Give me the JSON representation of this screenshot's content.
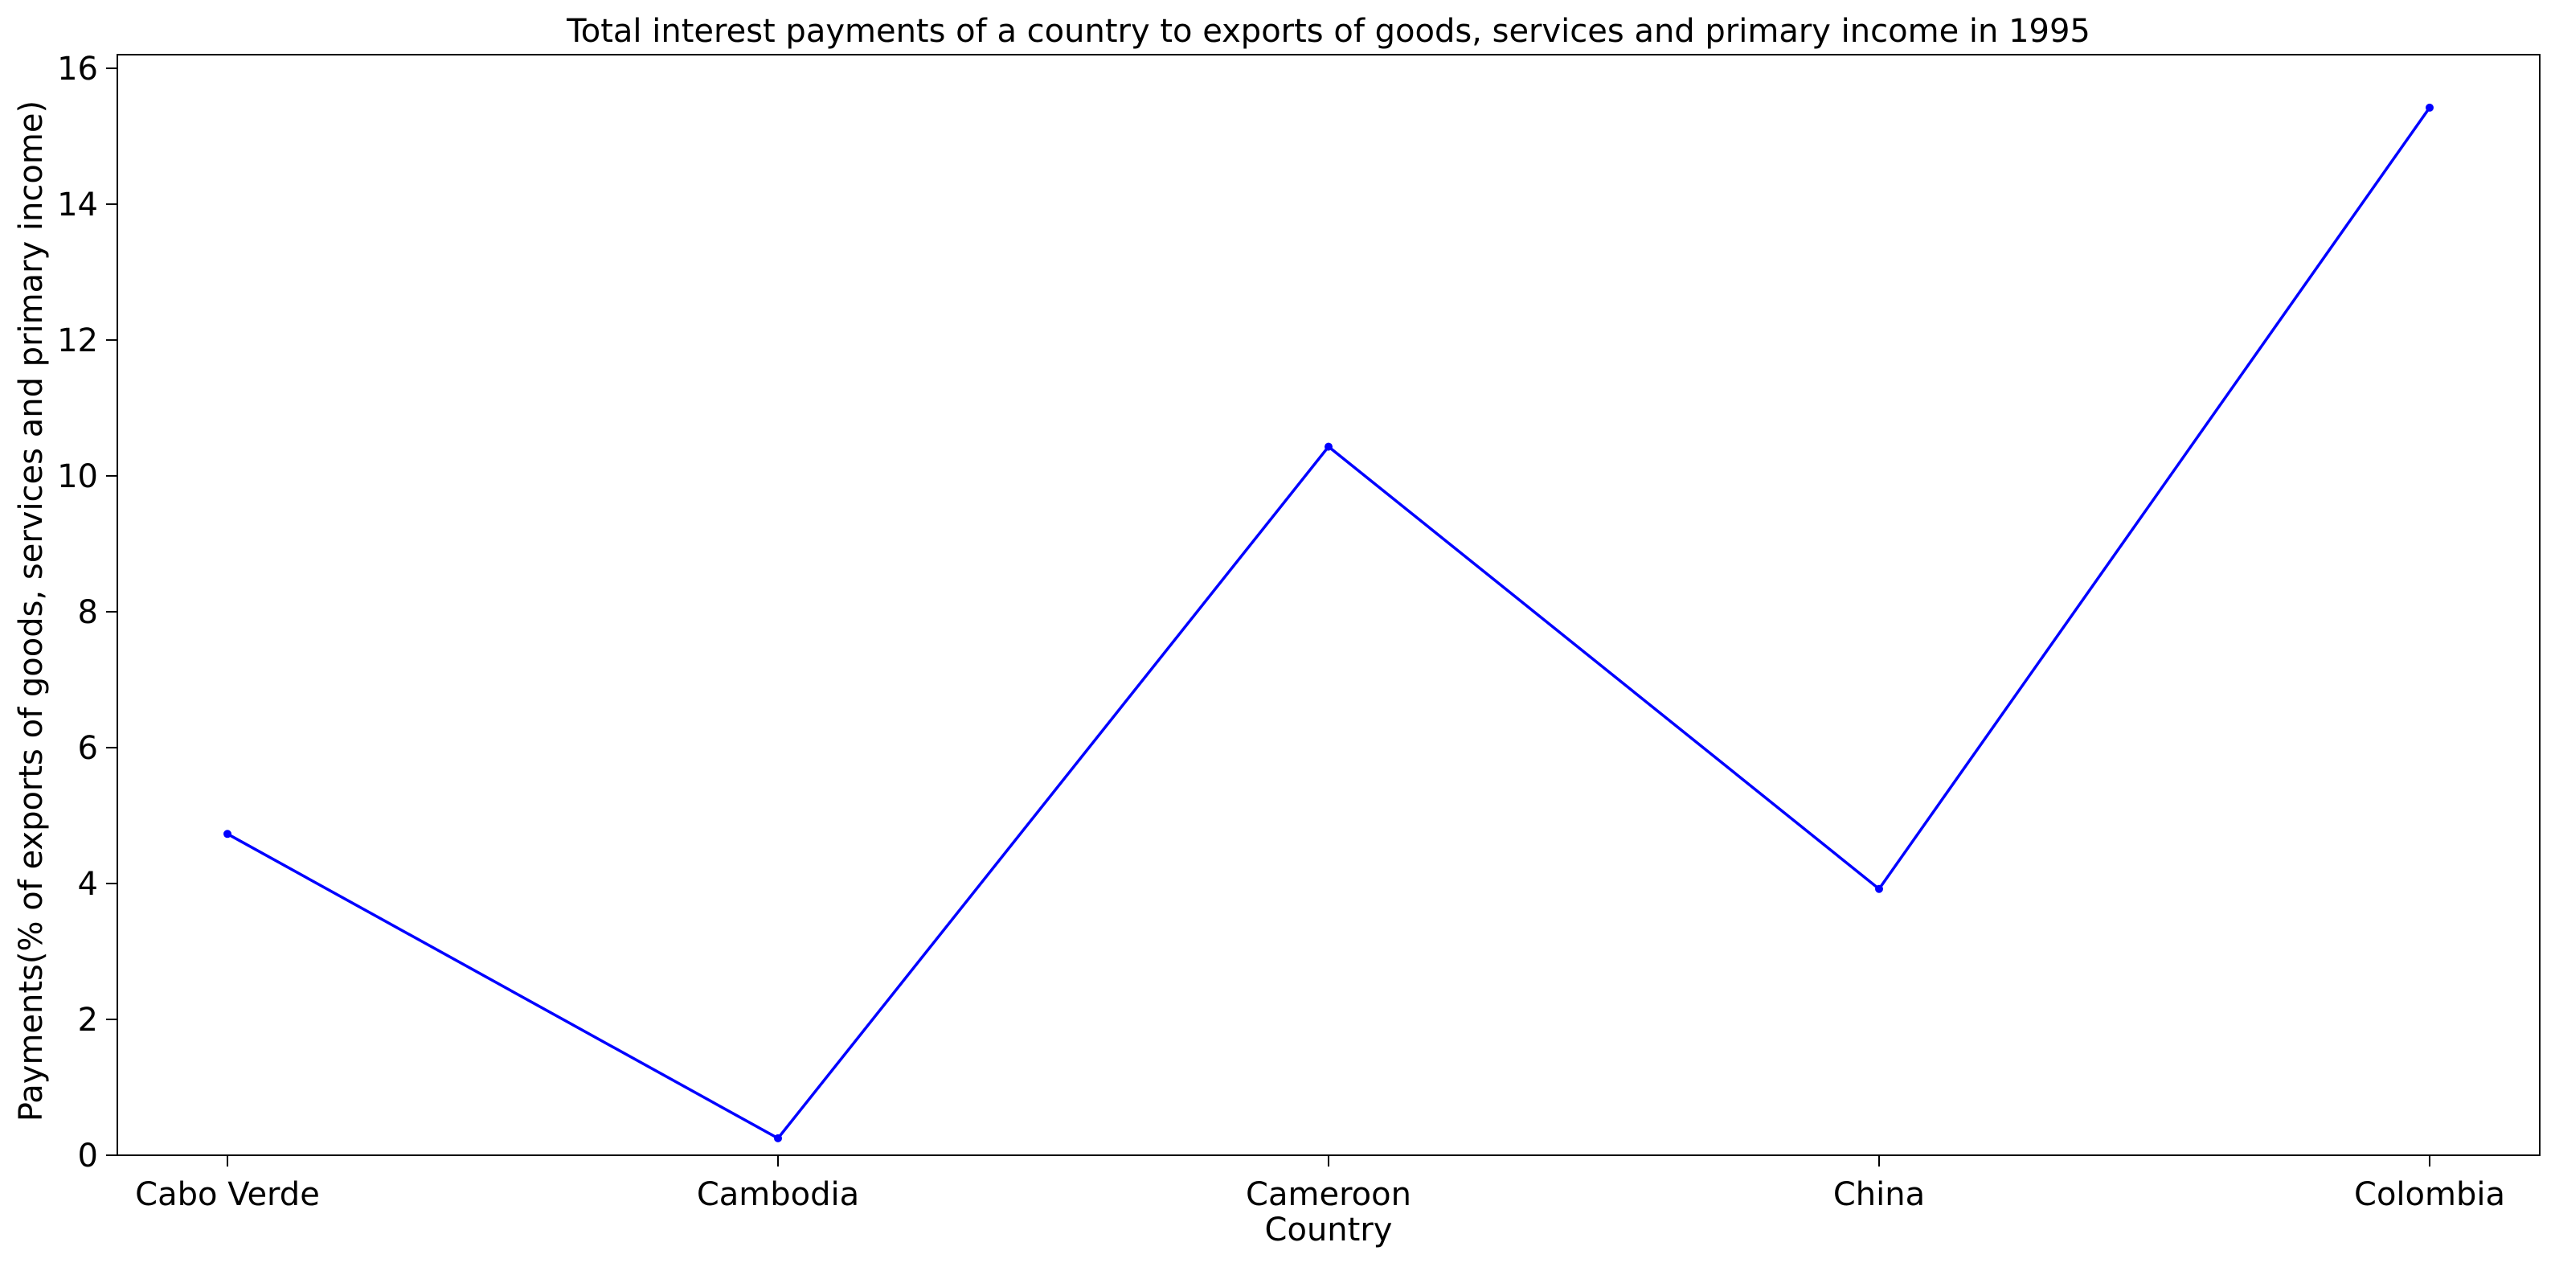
{
  "chart_data": {
    "type": "line",
    "title": "Total interest payments of a country to exports of goods, services and primary income in 1995",
    "xlabel": "Country",
    "ylabel": "Payments(% of exports of goods, services and primary income)",
    "categories": [
      "Cabo Verde",
      "Cambodia",
      "Cameroon",
      "China",
      "Colombia"
    ],
    "series": [
      {
        "values": [
          4.73,
          0.25,
          10.43,
          3.92,
          15.42
        ],
        "color": "#0000ff"
      }
    ],
    "ylim": [
      0,
      16.2
    ],
    "yticks": [
      0,
      2,
      4,
      6,
      8,
      10,
      12,
      14,
      16
    ],
    "grid": false,
    "legend": "none"
  }
}
